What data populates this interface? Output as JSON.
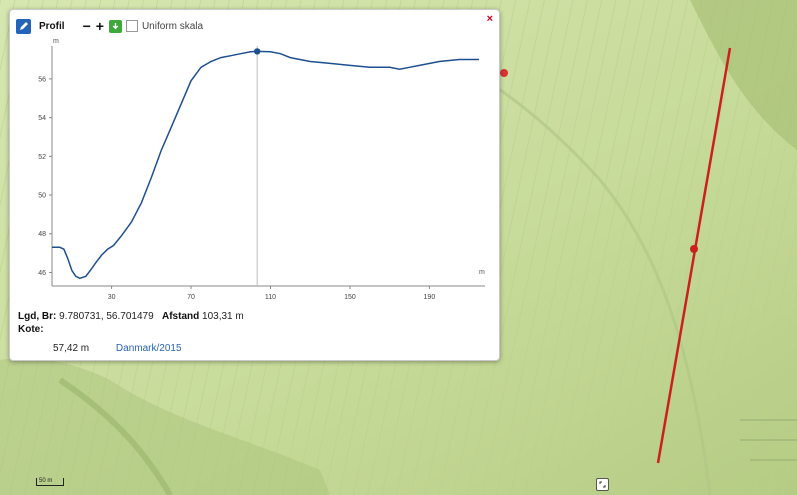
{
  "panel": {
    "title": "Profil",
    "zoom_out_label": "−",
    "zoom_in_label": "+",
    "uniform_label": "Uniform skala",
    "close_label": "×"
  },
  "chart_data": {
    "type": "line",
    "y_unit_label": "m",
    "x_unit_label": "m",
    "xlim": [
      0,
      218
    ],
    "ylim": [
      45.3,
      57.7
    ],
    "x_ticks": [
      30,
      70,
      110,
      150,
      190
    ],
    "y_ticks": [
      46,
      48,
      50,
      52,
      54,
      56
    ],
    "cursor_x": 103.31,
    "cursor_y": 57.42,
    "grid": false,
    "series": [
      {
        "x": [
          0,
          4,
          6,
          8,
          10,
          12,
          14,
          17,
          20,
          22,
          25,
          28,
          31,
          35,
          40,
          45,
          50,
          55,
          60,
          65,
          70,
          75,
          80,
          85,
          90,
          95,
          100,
          103.31,
          110,
          115,
          120,
          130,
          140,
          150,
          160,
          170,
          175,
          180,
          185,
          195,
          205,
          215
        ],
        "y": [
          47.3,
          47.3,
          47.2,
          46.7,
          46.1,
          45.8,
          45.7,
          45.8,
          46.2,
          46.5,
          46.9,
          47.2,
          47.4,
          47.9,
          48.6,
          49.6,
          50.9,
          52.3,
          53.5,
          54.7,
          55.9,
          56.6,
          56.9,
          57.1,
          57.2,
          57.3,
          57.4,
          57.42,
          57.4,
          57.3,
          57.1,
          56.9,
          56.8,
          56.7,
          56.6,
          56.6,
          56.5,
          56.6,
          56.7,
          56.9,
          57.0,
          57.0
        ]
      }
    ]
  },
  "info": {
    "coords_label": "Lgd, Br:",
    "coords_value": "9.780731, 56.701479",
    "distance_label": "Afstand",
    "distance_value": "103,31 m",
    "elevation_label": "Kote:",
    "elevation_value": "57,42 m",
    "dataset_link": "Danmark/2015"
  },
  "map": {
    "scale_label": "50 m",
    "line_color": "#cc1f1f",
    "terrain_color": "#c9dca0"
  }
}
